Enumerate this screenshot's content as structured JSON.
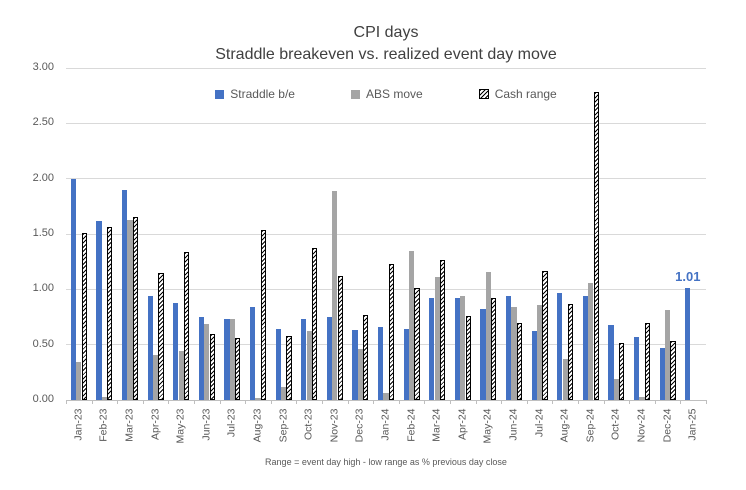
{
  "colors": {
    "straddle_blue": "#4472C4",
    "abs_gray": "#A5A5A5",
    "cash_pattern_fg": "#000000",
    "cash_pattern_bg": "#FFFFFF",
    "gridline": "#D9D9D9",
    "axis_line": "#BFBFBF",
    "axis_text": "#595959",
    "title_text": "#404040",
    "annotation_text": "#4472C4"
  },
  "chart_data": {
    "type": "bar",
    "title": "CPI days",
    "subtitle": "Straddle breakeven vs. realized event day move",
    "footnote": "Range = event day high - low range as % previous day close",
    "legend_position": "top",
    "grid": true,
    "ylim": [
      0,
      3.0
    ],
    "yticks": [
      {
        "value": 0.0,
        "label": "0.00"
      },
      {
        "value": 0.5,
        "label": "0.50"
      },
      {
        "value": 1.0,
        "label": "1.00"
      },
      {
        "value": 1.5,
        "label": "1.50"
      },
      {
        "value": 2.0,
        "label": "2.00"
      },
      {
        "value": 2.5,
        "label": "2.50"
      },
      {
        "value": 3.0,
        "label": "3.00"
      }
    ],
    "categories": [
      "Jan-23",
      "Feb-23",
      "Mar-23",
      "Apr-23",
      "May-23",
      "Jun-23",
      "Jul-23",
      "Aug-23",
      "Sep-23",
      "Oct-23",
      "Nov-23",
      "Dec-23",
      "Jan-24",
      "Feb-24",
      "Mar-24",
      "Apr-24",
      "May-24",
      "Jun-24",
      "Jul-24",
      "Aug-24",
      "Sep-24",
      "Oct-24",
      "Nov-24",
      "Dec-24",
      "Jan-25"
    ],
    "series": [
      {
        "name": "Straddle b/e",
        "style": "solid",
        "color": "#4472C4",
        "values": [
          2.0,
          1.62,
          1.9,
          0.94,
          0.88,
          0.75,
          0.73,
          0.84,
          0.64,
          0.73,
          0.75,
          0.63,
          0.66,
          0.64,
          0.92,
          0.92,
          0.82,
          0.94,
          0.62,
          0.97,
          0.94,
          0.68,
          0.57,
          0.47,
          1.01
        ]
      },
      {
        "name": "ABS move",
        "style": "solid",
        "color": "#A5A5A5",
        "values": [
          0.34,
          0.03,
          1.63,
          0.41,
          0.44,
          0.69,
          0.73,
          0.02,
          0.12,
          0.62,
          1.89,
          0.46,
          0.06,
          1.35,
          1.11,
          0.94,
          1.16,
          0.84,
          0.86,
          0.37,
          1.06,
          0.19,
          0.03,
          0.81,
          null
        ]
      },
      {
        "name": "Cash range",
        "style": "hatched",
        "color": "#000000",
        "values": [
          1.51,
          1.56,
          1.65,
          1.15,
          1.34,
          0.6,
          0.56,
          1.54,
          0.58,
          1.37,
          1.12,
          0.77,
          1.23,
          1.01,
          1.27,
          0.76,
          0.92,
          0.7,
          1.17,
          0.87,
          2.78,
          0.52,
          0.7,
          0.53,
          null
        ]
      }
    ],
    "data_labels": [
      {
        "series": "Straddle b/e",
        "category": "Jan-25",
        "text": "1.01",
        "color": "#4472C4"
      }
    ]
  }
}
